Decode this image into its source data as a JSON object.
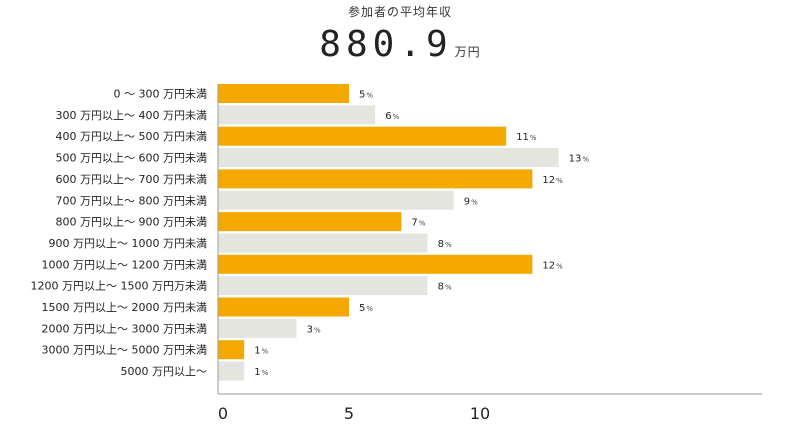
{
  "title": "参加者の平均年収",
  "average": {
    "value": "880.9",
    "unit": "万円"
  },
  "colors": {
    "highlight": "#f5a800",
    "alternate": "#e5e5e0",
    "axis": "#999999"
  },
  "chart_data": {
    "type": "bar",
    "orientation": "horizontal",
    "title": "参加者の平均年収",
    "categories": [
      "0 ～ 300 万円未満",
      "300 万円以上～ 400 万円未満",
      "400 万円以上～ 500 万円未満",
      "500 万円以上～ 600 万円未満",
      "600 万円以上～ 700 万円未満",
      "700 万円以上～ 800 万円未満",
      "800 万円以上～ 900 万円未満",
      "900 万円以上～ 1000 万円未満",
      "1000 万円以上～ 1200 万円未満",
      "1200 万円以上～ 1500 万円万未満",
      "1500 万円以上～ 2000 万円未満",
      "2000 万円以上～ 3000 万円未満",
      "3000 万円以上～ 5000 万円未満",
      "5000 万円以上～"
    ],
    "values": [
      5,
      6,
      11,
      13,
      12,
      9,
      7,
      8,
      12,
      8,
      5,
      3,
      1,
      1
    ],
    "value_suffix": "%",
    "xlim": [
      0,
      20
    ],
    "xticks": [
      0,
      5,
      10
    ],
    "grid": false,
    "legend": "none"
  }
}
